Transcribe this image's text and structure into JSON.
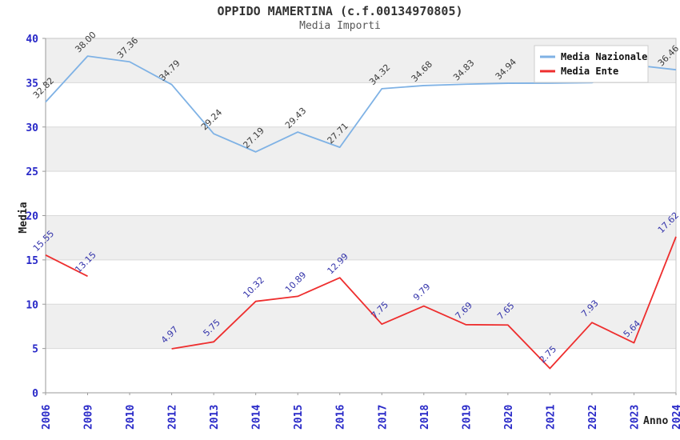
{
  "page": {
    "title": "OPPIDO MAMERTINA (c.f.00134970805)",
    "subtitle": "Media Importi"
  },
  "chart_data": {
    "type": "line",
    "title": "OPPIDO MAMERTINA (c.f.00134970805)",
    "subtitle": "Media Importi",
    "xlabel": "Anno",
    "ylabel": "Media",
    "ylim": [
      0,
      40
    ],
    "yticks": [
      0,
      5,
      10,
      15,
      20,
      25,
      30,
      35,
      40
    ],
    "grid": true,
    "legend_position": "top-right",
    "categories": [
      "2006",
      "2009",
      "2010",
      "2012",
      "2013",
      "2014",
      "2015",
      "2016",
      "2017",
      "2018",
      "2019",
      "2020",
      "2021",
      "2022",
      "2023",
      "2024"
    ],
    "series": [
      {
        "name": "Media Nazionale",
        "color": "#7fb2e5",
        "label_color": "#3c3c3c",
        "values": [
          32.82,
          38.0,
          37.36,
          34.79,
          29.24,
          27.19,
          29.43,
          27.71,
          34.32,
          34.68,
          34.83,
          34.94,
          34.95,
          35.0,
          37.0,
          36.46
        ],
        "labels": [
          "32.82",
          "38.00",
          "37.36",
          "34.79",
          "29.24",
          "27.19",
          "29.43",
          "27.71",
          "34.32",
          "34.68",
          "34.83",
          "34.94",
          null,
          null,
          null,
          "36.46"
        ]
      },
      {
        "name": "Media Ente",
        "color": "#ee2e2e",
        "label_color": "#3333aa",
        "values": [
          15.55,
          13.15,
          null,
          4.97,
          5.75,
          10.32,
          10.89,
          12.99,
          7.75,
          9.79,
          7.69,
          7.65,
          2.75,
          7.93,
          5.64,
          17.62
        ],
        "labels": [
          "15.55",
          "13.15",
          null,
          "4.97",
          "5.75",
          "10.32",
          "10.89",
          "12.99",
          "7.75",
          "9.79",
          "7.69",
          "7.65",
          "2.75",
          "7.93",
          "5.64",
          "17.62"
        ]
      }
    ],
    "colors": {
      "band_gray": "#efefef",
      "gridline": "#d9d9d9",
      "plot_border": "#c6c6c6",
      "axis_line": "#9a9a9a",
      "tick_label": "#2929c8",
      "title": "#333333",
      "subtitle": "#575757",
      "legend_border": "#cccccc",
      "legend_bg": "#ffffff"
    }
  }
}
